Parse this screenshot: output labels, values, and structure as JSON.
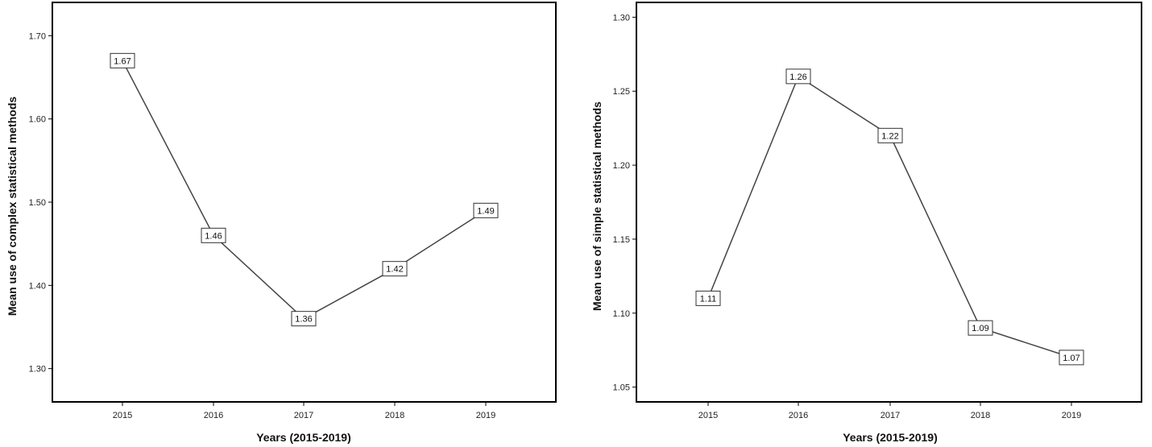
{
  "chart_data": [
    {
      "type": "line",
      "xlabel": "Years (2015-2019)",
      "ylabel": "Mean use of complex statistical methods",
      "categories": [
        "2015",
        "2016",
        "2017",
        "2018",
        "2019"
      ],
      "values": [
        1.67,
        1.46,
        1.36,
        1.42,
        1.49
      ],
      "data_labels": [
        "1.67",
        "1.46",
        "1.36",
        "1.42",
        "1.49"
      ],
      "ylim": [
        1.26,
        1.74
      ],
      "yticks": [
        1.3,
        1.4,
        1.5,
        1.6,
        1.7
      ],
      "ytick_labels": [
        "1.30",
        "1.40",
        "1.50",
        "1.60",
        "1.70"
      ],
      "grid": false
    },
    {
      "type": "line",
      "xlabel": "Years (2015-2019)",
      "ylabel": "Mean use of simple statistical methods",
      "categories": [
        "2015",
        "2016",
        "2017",
        "2018",
        "2019"
      ],
      "values": [
        1.11,
        1.26,
        1.22,
        1.09,
        1.07
      ],
      "data_labels": [
        "1.11",
        "1.26",
        "1.22",
        "1.09",
        "1.07"
      ],
      "ylim": [
        1.04,
        1.31
      ],
      "yticks": [
        1.05,
        1.1,
        1.15,
        1.2,
        1.25,
        1.3
      ],
      "ytick_labels": [
        "1.05",
        "1.10",
        "1.15",
        "1.20",
        "1.25",
        "1.30"
      ],
      "grid": false
    }
  ]
}
